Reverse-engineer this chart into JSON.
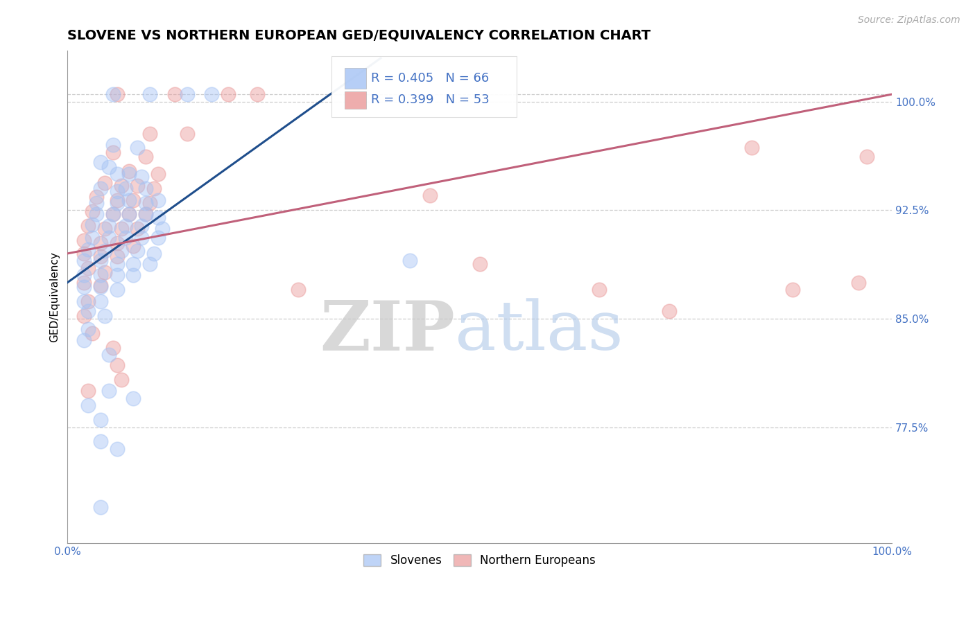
{
  "title": "SLOVENE VS NORTHERN EUROPEAN GED/EQUIVALENCY CORRELATION CHART",
  "source_text": "Source: ZipAtlas.com",
  "ylabel": "GED/Equivalency",
  "xlim": [
    0.0,
    1.0
  ],
  "ylim": [
    0.695,
    1.035
  ],
  "yticks": [
    0.775,
    0.85,
    0.925,
    1.0
  ],
  "ytick_labels": [
    "77.5%",
    "85.0%",
    "92.5%",
    "100.0%"
  ],
  "xtick_labels": [
    "0.0%",
    "100.0%"
  ],
  "xticks": [
    0.0,
    1.0
  ],
  "legend_blue_label": "Slovenes",
  "legend_pink_label": "Northern Europeans",
  "r_blue": 0.405,
  "n_blue": 66,
  "r_pink": 0.399,
  "n_pink": 53,
  "blue_color": "#a4c2f4",
  "pink_color": "#ea9999",
  "blue_line_color": "#1f4e8c",
  "pink_line_color": "#c0607a",
  "title_fontsize": 14,
  "label_fontsize": 11,
  "tick_fontsize": 11,
  "watermark_zip": "ZIP",
  "watermark_atlas": "atlas",
  "blue_scatter": [
    [
      0.055,
      1.005
    ],
    [
      0.1,
      1.005
    ],
    [
      0.145,
      1.005
    ],
    [
      0.175,
      1.005
    ],
    [
      0.055,
      0.97
    ],
    [
      0.085,
      0.968
    ],
    [
      0.04,
      0.958
    ],
    [
      0.05,
      0.955
    ],
    [
      0.06,
      0.95
    ],
    [
      0.075,
      0.95
    ],
    [
      0.09,
      0.948
    ],
    [
      0.04,
      0.94
    ],
    [
      0.06,
      0.938
    ],
    [
      0.07,
      0.94
    ],
    [
      0.095,
      0.94
    ],
    [
      0.035,
      0.93
    ],
    [
      0.06,
      0.93
    ],
    [
      0.075,
      0.932
    ],
    [
      0.095,
      0.93
    ],
    [
      0.11,
      0.932
    ],
    [
      0.035,
      0.922
    ],
    [
      0.055,
      0.922
    ],
    [
      0.075,
      0.922
    ],
    [
      0.095,
      0.922
    ],
    [
      0.11,
      0.92
    ],
    [
      0.03,
      0.915
    ],
    [
      0.05,
      0.914
    ],
    [
      0.07,
      0.914
    ],
    [
      0.09,
      0.914
    ],
    [
      0.115,
      0.912
    ],
    [
      0.03,
      0.906
    ],
    [
      0.05,
      0.906
    ],
    [
      0.07,
      0.906
    ],
    [
      0.09,
      0.906
    ],
    [
      0.11,
      0.906
    ],
    [
      0.025,
      0.898
    ],
    [
      0.045,
      0.897
    ],
    [
      0.065,
      0.897
    ],
    [
      0.085,
      0.897
    ],
    [
      0.105,
      0.895
    ],
    [
      0.02,
      0.89
    ],
    [
      0.04,
      0.89
    ],
    [
      0.06,
      0.888
    ],
    [
      0.08,
      0.888
    ],
    [
      0.1,
      0.888
    ],
    [
      0.02,
      0.88
    ],
    [
      0.04,
      0.88
    ],
    [
      0.06,
      0.88
    ],
    [
      0.08,
      0.88
    ],
    [
      0.02,
      0.872
    ],
    [
      0.04,
      0.872
    ],
    [
      0.06,
      0.87
    ],
    [
      0.02,
      0.862
    ],
    [
      0.04,
      0.862
    ],
    [
      0.025,
      0.855
    ],
    [
      0.045,
      0.852
    ],
    [
      0.025,
      0.843
    ],
    [
      0.02,
      0.835
    ],
    [
      0.05,
      0.825
    ],
    [
      0.05,
      0.8
    ],
    [
      0.08,
      0.795
    ],
    [
      0.025,
      0.79
    ],
    [
      0.04,
      0.78
    ],
    [
      0.04,
      0.765
    ],
    [
      0.06,
      0.76
    ],
    [
      0.04,
      0.72
    ],
    [
      0.415,
      0.89
    ]
  ],
  "pink_scatter": [
    [
      0.06,
      1.005
    ],
    [
      0.13,
      1.005
    ],
    [
      0.195,
      1.005
    ],
    [
      0.23,
      1.005
    ],
    [
      0.1,
      0.978
    ],
    [
      0.145,
      0.978
    ],
    [
      0.055,
      0.965
    ],
    [
      0.095,
      0.962
    ],
    [
      0.075,
      0.952
    ],
    [
      0.11,
      0.95
    ],
    [
      0.045,
      0.944
    ],
    [
      0.065,
      0.942
    ],
    [
      0.085,
      0.942
    ],
    [
      0.105,
      0.94
    ],
    [
      0.035,
      0.934
    ],
    [
      0.06,
      0.932
    ],
    [
      0.08,
      0.932
    ],
    [
      0.1,
      0.93
    ],
    [
      0.03,
      0.924
    ],
    [
      0.055,
      0.922
    ],
    [
      0.075,
      0.922
    ],
    [
      0.095,
      0.922
    ],
    [
      0.025,
      0.914
    ],
    [
      0.045,
      0.912
    ],
    [
      0.065,
      0.912
    ],
    [
      0.085,
      0.912
    ],
    [
      0.02,
      0.904
    ],
    [
      0.04,
      0.902
    ],
    [
      0.06,
      0.902
    ],
    [
      0.08,
      0.9
    ],
    [
      0.02,
      0.895
    ],
    [
      0.04,
      0.893
    ],
    [
      0.06,
      0.893
    ],
    [
      0.025,
      0.885
    ],
    [
      0.045,
      0.882
    ],
    [
      0.02,
      0.875
    ],
    [
      0.04,
      0.873
    ],
    [
      0.025,
      0.862
    ],
    [
      0.02,
      0.852
    ],
    [
      0.03,
      0.84
    ],
    [
      0.055,
      0.83
    ],
    [
      0.06,
      0.818
    ],
    [
      0.065,
      0.808
    ],
    [
      0.025,
      0.8
    ],
    [
      0.28,
      0.87
    ],
    [
      0.44,
      0.935
    ],
    [
      0.5,
      0.888
    ],
    [
      0.645,
      0.87
    ],
    [
      0.73,
      0.855
    ],
    [
      0.83,
      0.968
    ],
    [
      0.88,
      0.87
    ],
    [
      0.96,
      0.875
    ],
    [
      0.97,
      0.962
    ]
  ],
  "blue_line_x": [
    0.0,
    0.38
  ],
  "blue_line_y": [
    0.875,
    1.03
  ],
  "pink_line_x": [
    0.0,
    1.0
  ],
  "pink_line_y": [
    0.895,
    1.005
  ]
}
